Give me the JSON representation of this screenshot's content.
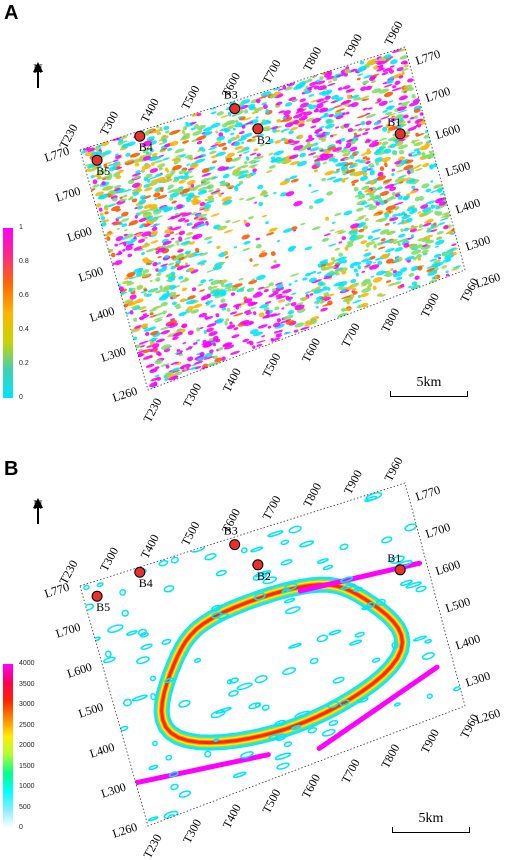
{
  "panels": [
    {
      "label": "A",
      "colorbar": {
        "ticks": [
          "1",
          "0.8",
          "0.6",
          "0.4",
          "0.2",
          "0"
        ],
        "colors": [
          "#ff00ff",
          "#ff2a80",
          "#ff6a00",
          "#ffb400",
          "#c8d400",
          "#40d0b0",
          "#00e5ff"
        ]
      },
      "scalebar": "5km",
      "north": "N"
    },
    {
      "label": "B",
      "colorbar": {
        "ticks": [
          "4000",
          "3500",
          "3000",
          "2500",
          "2000",
          "1500",
          "1000",
          "500",
          "0"
        ],
        "colors": [
          "#ff00ff",
          "#ff0055",
          "#ff2200",
          "#ff8800",
          "#ffee00",
          "#aaff33",
          "#00ff88",
          "#00ffff",
          "#88eeff",
          "#ffffff"
        ]
      },
      "scalebar": "5km",
      "north": "N"
    }
  ],
  "grid_labels": {
    "top_traces": [
      "T230",
      "T300",
      "T400",
      "T500",
      "T600",
      "T700",
      "T800",
      "T900",
      "T960"
    ],
    "bottom_traces": [
      "T230",
      "T300",
      "T400",
      "T500",
      "T600",
      "T700",
      "T800",
      "T900",
      "T960"
    ],
    "left_lines": [
      "L770",
      "L700",
      "L600",
      "L500",
      "L400",
      "L300",
      "L260"
    ],
    "right_lines": [
      "L770",
      "L700",
      "L600",
      "L500",
      "L400",
      "L300",
      "L260"
    ]
  },
  "wells": [
    "B1",
    "B2",
    "B3",
    "B4",
    "B5"
  ],
  "colors": {
    "well_fill": "#e8302c",
    "cyan": "#00e5ff",
    "magenta": "#ff00ff",
    "red": "#ff2200",
    "yellow": "#ffee00",
    "green": "#7ce06a"
  }
}
